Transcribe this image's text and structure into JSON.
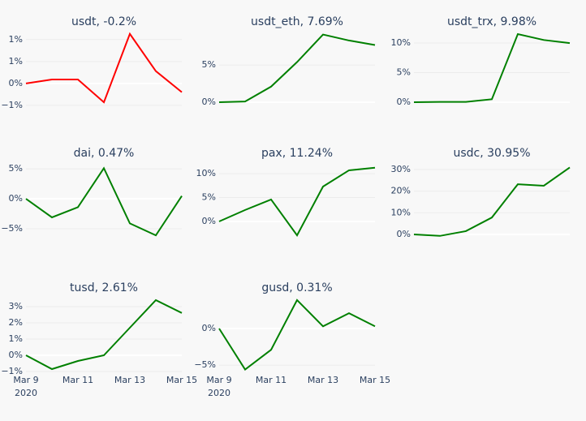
{
  "chart_data": [
    {
      "type": "line",
      "title": "usdt, -0.2%",
      "x": [
        "2020-03-09",
        "2020-03-10",
        "2020-03-11",
        "2020-03-12",
        "2020-03-13",
        "2020-03-14",
        "2020-03-15"
      ],
      "values": [
        0,
        0.09,
        0.09,
        -0.43,
        1.13,
        0.28,
        -0.2
      ],
      "color": "#ff0000",
      "ylim": [
        -0.54,
        1.2
      ],
      "yticks": [
        {
          "value": -0.5,
          "label": "−1%"
        },
        {
          "value": 0,
          "label": "0%"
        },
        {
          "value": 0.5,
          "label": "1%"
        },
        {
          "value": 1,
          "label": "1%"
        }
      ],
      "grid": true
    },
    {
      "type": "line",
      "title": "usdt_eth, 7.69%",
      "x": [
        "2020-03-09",
        "2020-03-10",
        "2020-03-11",
        "2020-03-12",
        "2020-03-13",
        "2020-03-14",
        "2020-03-15"
      ],
      "values": [
        0,
        0.1,
        2.1,
        5.4,
        9.1,
        8.3,
        7.69
      ],
      "color": "#008000",
      "ylim": [
        -0.65,
        9.6
      ],
      "yticks": [
        {
          "value": 0,
          "label": "0%"
        },
        {
          "value": 5,
          "label": "5%"
        }
      ],
      "grid": true
    },
    {
      "type": "line",
      "title": "usdt_trx, 9.98%",
      "x": [
        "2020-03-09",
        "2020-03-10",
        "2020-03-11",
        "2020-03-12",
        "2020-03-13",
        "2020-03-14",
        "2020-03-15"
      ],
      "values": [
        0,
        0.05,
        0.05,
        0.5,
        11.5,
        10.5,
        9.98
      ],
      "color": "#008000",
      "ylim": [
        -0.82,
        12.05
      ],
      "yticks": [
        {
          "value": 0,
          "label": "0%"
        },
        {
          "value": 5,
          "label": "5%"
        },
        {
          "value": 10,
          "label": "10%"
        }
      ],
      "grid": true
    },
    {
      "type": "line",
      "title": "dai, 0.47%",
      "x": [
        "2020-03-09",
        "2020-03-10",
        "2020-03-11",
        "2020-03-12",
        "2020-03-13",
        "2020-03-14",
        "2020-03-15"
      ],
      "values": [
        0,
        -3.1,
        -1.4,
        5.1,
        -4.1,
        -6.1,
        0.47
      ],
      "color": "#008000",
      "ylim": [
        -7.16,
        6.5
      ],
      "yticks": [
        {
          "value": -5,
          "label": "−5%"
        },
        {
          "value": 0,
          "label": "0%"
        },
        {
          "value": 5,
          "label": "5%"
        }
      ],
      "grid": true
    },
    {
      "type": "line",
      "title": "pax, 11.24%",
      "x": [
        "2020-03-09",
        "2020-03-10",
        "2020-03-11",
        "2020-03-12",
        "2020-03-13",
        "2020-03-14",
        "2020-03-15"
      ],
      "values": [
        0,
        2.4,
        4.6,
        -2.9,
        7.3,
        10.7,
        11.24
      ],
      "color": "#008000",
      "ylim": [
        -4.24,
        12.9
      ],
      "yticks": [
        {
          "value": 0,
          "label": "0%"
        },
        {
          "value": 5,
          "label": "5%"
        },
        {
          "value": 10,
          "label": "10%"
        }
      ],
      "grid": true
    },
    {
      "type": "line",
      "title": "usdc, 30.95%",
      "x": [
        "2020-03-09",
        "2020-03-10",
        "2020-03-11",
        "2020-03-12",
        "2020-03-13",
        "2020-03-14",
        "2020-03-15"
      ],
      "values": [
        0,
        -0.7,
        1.5,
        7.8,
        23.2,
        22.5,
        30.95
      ],
      "color": "#008000",
      "ylim": [
        -3.4,
        34.5
      ],
      "yticks": [
        {
          "value": 0,
          "label": "0%"
        },
        {
          "value": 10,
          "label": "10%"
        },
        {
          "value": 20,
          "label": "20%"
        },
        {
          "value": 30,
          "label": "30%"
        }
      ],
      "grid": true
    },
    {
      "type": "line",
      "title": "tusd, 2.61%",
      "x": [
        "2020-03-09",
        "2020-03-10",
        "2020-03-11",
        "2020-03-12",
        "2020-03-13",
        "2020-03-14",
        "2020-03-15"
      ],
      "values": [
        0,
        -0.85,
        -0.35,
        0,
        1.7,
        3.4,
        2.61
      ],
      "color": "#008000",
      "ylim": [
        -1.1,
        3.65
      ],
      "yticks": [
        {
          "value": -1,
          "label": "−1%"
        },
        {
          "value": 0,
          "label": "0%"
        },
        {
          "value": 1,
          "label": "1%"
        },
        {
          "value": 2,
          "label": "2%"
        },
        {
          "value": 3,
          "label": "3%"
        }
      ],
      "grid": true,
      "xticks": [
        {
          "value": "2020-03-09",
          "label": "Mar 9"
        },
        {
          "value": "2020-03-11",
          "label": "Mar 11"
        },
        {
          "value": "2020-03-13",
          "label": "Mar 13"
        },
        {
          "value": "2020-03-15",
          "label": "Mar 15"
        }
      ],
      "x_year": "2020"
    },
    {
      "type": "line",
      "title": "gusd, 0.31%",
      "x": [
        "2020-03-09",
        "2020-03-10",
        "2020-03-11",
        "2020-03-12",
        "2020-03-13",
        "2020-03-14",
        "2020-03-15"
      ],
      "values": [
        0,
        -5.6,
        -2.9,
        3.9,
        0.3,
        2.1,
        0.31
      ],
      "color": "#008000",
      "ylim": [
        -6.1,
        4.44
      ],
      "yticks": [
        {
          "value": -5,
          "label": "−5%"
        },
        {
          "value": 0,
          "label": "0%"
        }
      ],
      "grid": true,
      "xticks": [
        {
          "value": "2020-03-09",
          "label": "Mar 9"
        },
        {
          "value": "2020-03-11",
          "label": "Mar 11"
        },
        {
          "value": "2020-03-13",
          "label": "Mar 13"
        },
        {
          "value": "2020-03-15",
          "label": "Mar 15"
        }
      ],
      "x_year": "2020"
    }
  ]
}
